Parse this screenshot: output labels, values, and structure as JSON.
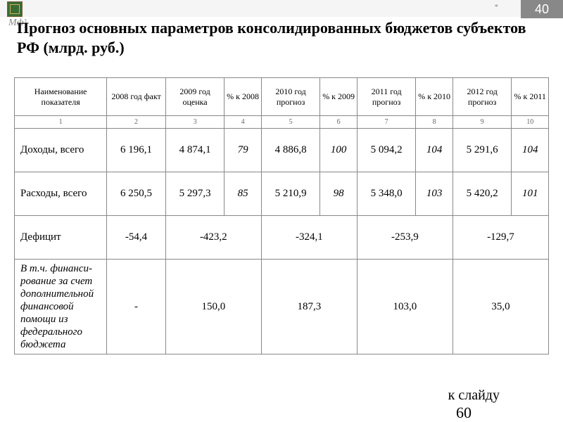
{
  "header": {
    "logo_text": "Мф",
    "logo_bracket": "]",
    "asterisk": "*",
    "page_number": "40"
  },
  "title": "Прогноз основных параметров консолидированных бюджетов субъектов РФ (млрд. руб.)",
  "table": {
    "columns": [
      "Наименование показателя",
      "2008 год факт",
      "2009 год оценка",
      "% к 2008",
      "2010 год прогноз",
      "% к 2009",
      "2011 год прогноз",
      "% к 2010",
      "2012 год прогноз",
      "% к 2011"
    ],
    "col_nums": [
      "1",
      "2",
      "3",
      "4",
      "5",
      "6",
      "7",
      "8",
      "9",
      "10"
    ],
    "rows": [
      {
        "label": "Доходы, всего",
        "cells": [
          "6 196,1",
          "4 874,1",
          "79",
          "4 886,8",
          "100",
          "5 094,2",
          "104",
          "5 291,6",
          "104"
        ],
        "pct_idx": [
          2,
          4,
          6,
          8
        ]
      },
      {
        "label": "Расходы, всего",
        "cells": [
          "6 250,5",
          "5 297,3",
          "85",
          "5 210,9",
          "98",
          "5 348,0",
          "103",
          "5 420,2",
          "101"
        ],
        "pct_idx": [
          2,
          4,
          6,
          8
        ]
      }
    ],
    "merged_rows": [
      {
        "label": "Дефицит",
        "label_italic": false,
        "cells": [
          "-54,4",
          "-423,2",
          "-324,1",
          "-253,9",
          "-129,7"
        ]
      },
      {
        "label": "В т.ч. финанси-рование за счет дополнительной финансовой помощи из федерального бюджета",
        "label_italic": true,
        "cells": [
          "-",
          "150,0",
          "187,3",
          "103,0",
          "35,0"
        ]
      }
    ]
  },
  "footer": {
    "link_text": "к слайду",
    "page": "60"
  }
}
